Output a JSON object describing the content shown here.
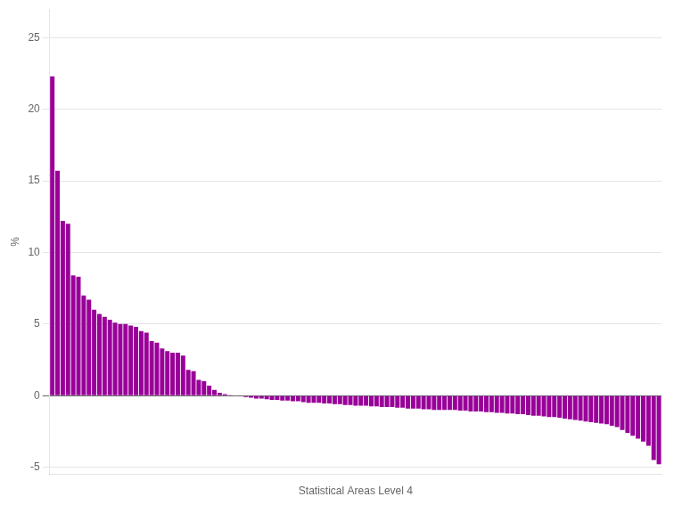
{
  "chart_data": {
    "type": "bar",
    "xlabel": "Statistical Areas Level 4",
    "ylabel": "%",
    "categories": [
      null,
      null,
      null,
      null,
      null,
      null,
      null,
      null,
      null,
      null,
      null,
      null,
      null,
      null,
      null,
      null,
      null,
      null,
      null,
      null,
      null,
      null,
      null,
      null,
      null,
      null,
      null,
      null,
      null,
      null,
      null,
      null,
      null,
      null,
      null,
      null,
      null,
      null,
      null,
      null,
      null,
      null,
      null,
      null,
      null,
      null,
      null,
      null,
      null,
      null,
      null,
      null,
      null,
      null,
      null,
      null,
      null,
      null,
      null,
      null,
      null,
      null,
      null,
      null,
      null,
      null,
      null,
      null,
      null,
      null,
      null,
      null,
      null,
      null,
      null,
      null,
      null,
      null,
      null,
      null,
      null,
      null,
      null,
      null,
      null,
      null,
      null,
      null,
      null,
      null,
      null,
      null,
      null,
      null,
      null,
      null,
      null,
      null,
      null,
      null,
      null,
      null,
      null,
      null,
      null,
      null,
      null,
      null,
      null,
      null,
      null,
      null,
      null,
      null,
      null,
      null,
      null
    ],
    "values": [
      22.3,
      15.7,
      12.2,
      12.0,
      8.4,
      8.3,
      7.0,
      6.7,
      6.0,
      5.7,
      5.5,
      5.3,
      5.1,
      5.0,
      5.0,
      4.9,
      4.8,
      4.5,
      4.4,
      3.8,
      3.7,
      3.3,
      3.1,
      3.0,
      3.0,
      2.8,
      1.8,
      1.7,
      1.1,
      1.0,
      0.7,
      0.4,
      0.2,
      0.1,
      0.05,
      0.0,
      -0.05,
      -0.1,
      -0.15,
      -0.2,
      -0.2,
      -0.25,
      -0.3,
      -0.3,
      -0.35,
      -0.35,
      -0.4,
      -0.4,
      -0.45,
      -0.5,
      -0.5,
      -0.5,
      -0.55,
      -0.55,
      -0.6,
      -0.6,
      -0.65,
      -0.65,
      -0.7,
      -0.7,
      -0.7,
      -0.75,
      -0.75,
      -0.8,
      -0.8,
      -0.8,
      -0.85,
      -0.85,
      -0.9,
      -0.9,
      -0.9,
      -0.95,
      -0.95,
      -1.0,
      -1.0,
      -1.0,
      -1.0,
      -1.0,
      -1.05,
      -1.05,
      -1.1,
      -1.1,
      -1.1,
      -1.15,
      -1.15,
      -1.2,
      -1.2,
      -1.25,
      -1.25,
      -1.3,
      -1.3,
      -1.35,
      -1.4,
      -1.4,
      -1.45,
      -1.5,
      -1.5,
      -1.55,
      -1.6,
      -1.65,
      -1.7,
      -1.75,
      -1.8,
      -1.85,
      -1.9,
      -1.95,
      -2.0,
      -2.1,
      -2.2,
      -2.4,
      -2.6,
      -2.8,
      -3.0,
      -3.2,
      -3.5,
      -4.5,
      -4.8
    ],
    "color": "#990099",
    "ylim": [
      -5.5,
      27
    ],
    "yticks": [
      -5,
      0,
      5,
      10,
      15,
      20,
      25
    ],
    "grid": true,
    "tick_labels": "y"
  }
}
